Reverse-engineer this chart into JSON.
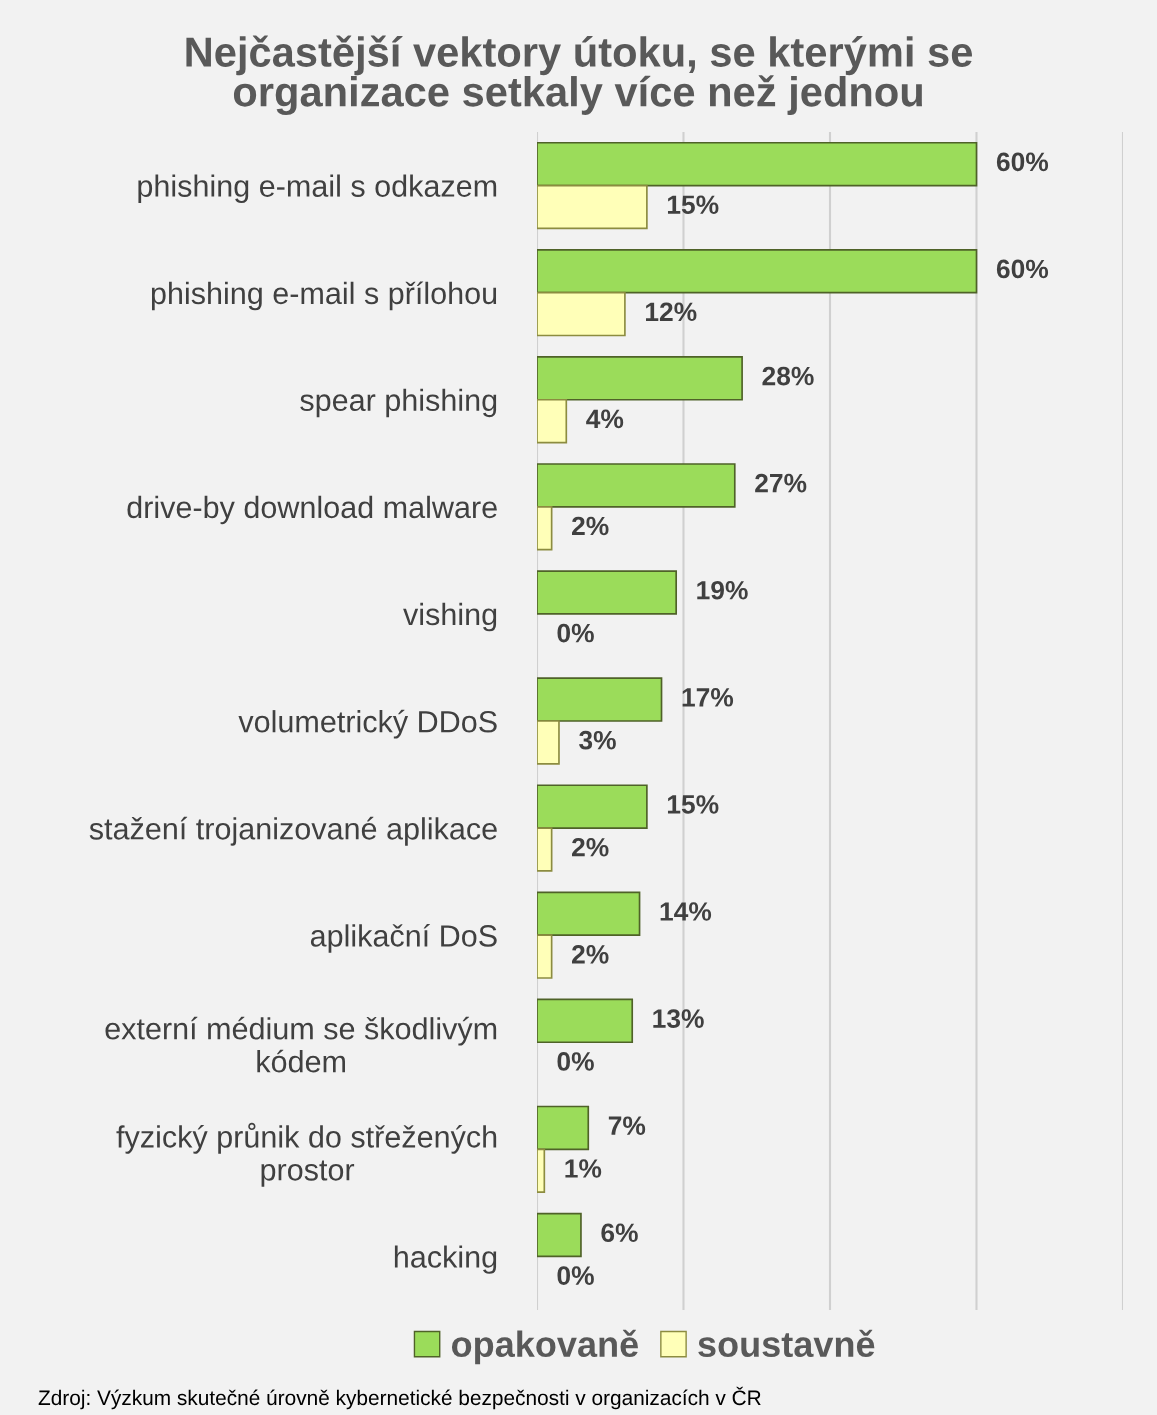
{
  "chart_data": {
    "type": "bar",
    "orientation": "horizontal",
    "title": "Nejčastější vektory útoku, se kterými se\norganizace setkaly více než jednou",
    "categories": [
      "phishing e-mail s odkazem",
      "phishing e-mail s přílohou",
      "spear phishing",
      "drive-by download malware",
      "vishing",
      "volumetrický DDoS",
      "stažení trojanizované aplikace",
      "aplikační DoS",
      "externí médium se škodlivým\nkódem",
      "fyzický průnik do střežených\nprostor",
      "hacking"
    ],
    "series": [
      {
        "name": "opakovaně",
        "color": "#9bdc5a",
        "values": [
          60,
          60,
          28,
          27,
          19,
          17,
          15,
          14,
          13,
          7,
          6
        ],
        "value_labels": [
          "60%",
          "60%",
          "28%",
          "27%",
          "19%",
          "17%",
          "15%",
          "14%",
          "13%",
          "7%",
          "6%"
        ]
      },
      {
        "name": "soustavně",
        "color": "#ffffb8",
        "values": [
          15,
          12,
          4,
          2,
          0,
          3,
          2,
          2,
          0,
          1,
          0
        ],
        "value_labels": [
          "15%",
          "12%",
          "4%",
          "2%",
          "0%",
          "3%",
          "2%",
          "2%",
          "0%",
          "1%",
          "0%"
        ]
      }
    ],
    "xlim": [
      0,
      80
    ],
    "xticks": [
      {
        "value": 0,
        "label": null
      },
      {
        "value": 20,
        "label": null
      },
      {
        "value": 40,
        "label": null
      },
      {
        "value": 60,
        "label": null
      },
      {
        "value": 80,
        "label": null
      }
    ],
    "grid": "x",
    "legend": "bottom",
    "tick_labels": "y",
    "annotations": [
      "Zdroj: Výzkum skutečné úrovně kybernetické bezpečnosti v organizacích v ČR"
    ]
  }
}
